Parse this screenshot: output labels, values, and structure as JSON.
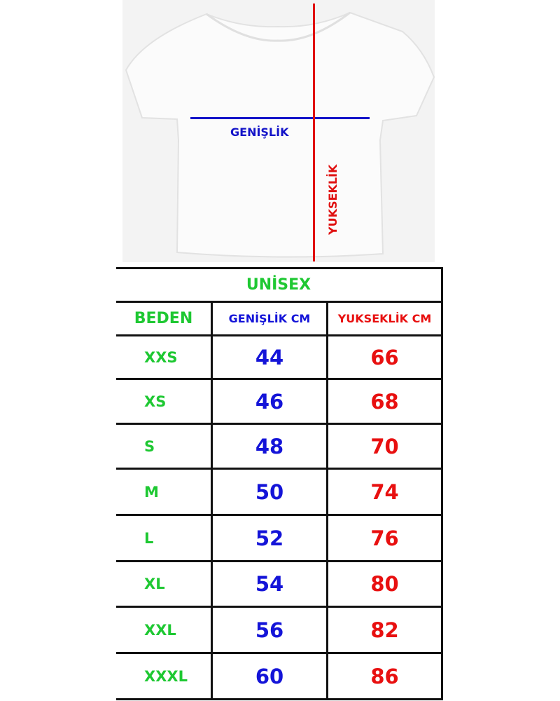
{
  "diagram": {
    "width_label": "GENİŞLİK",
    "height_label": "YUKSEKLİK",
    "colors": {
      "width_line": "#1414c8",
      "height_line": "#e01010"
    }
  },
  "table": {
    "title": "UNİSEX",
    "headers": [
      "BEDEN",
      "GENİŞLİK CM",
      "YUKSEKLİK CM"
    ],
    "rows": [
      {
        "size": "XXS",
        "width": "44",
        "height": "66"
      },
      {
        "size": "XS",
        "width": "46",
        "height": "68"
      },
      {
        "size": "S",
        "width": "48",
        "height": "70"
      },
      {
        "size": "M",
        "width": "50",
        "height": "74"
      },
      {
        "size": "L",
        "width": "52",
        "height": "76"
      },
      {
        "size": "XL",
        "width": "54",
        "height": "80"
      },
      {
        "size": "XXL",
        "width": "56",
        "height": "82"
      },
      {
        "size": "XXXL",
        "width": "60",
        "height": "86"
      }
    ],
    "colors": {
      "size": "#1ec832",
      "width": "#1414d8",
      "height": "#e81010"
    }
  }
}
